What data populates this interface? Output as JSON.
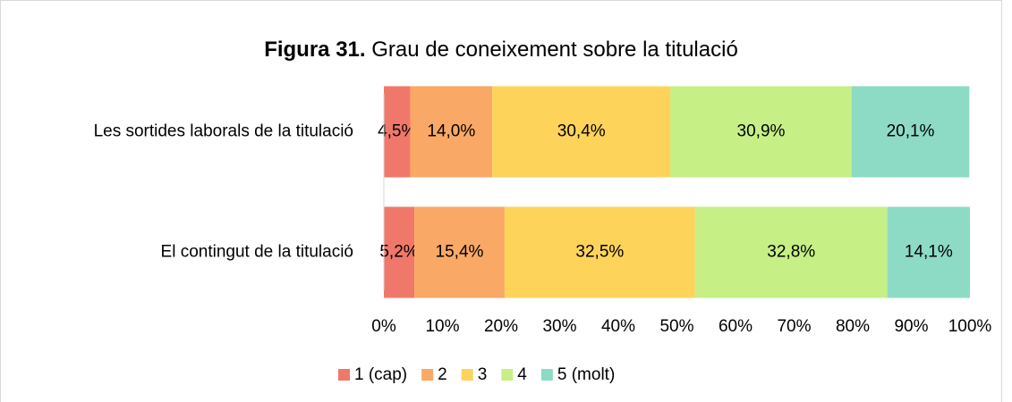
{
  "chart_data": {
    "type": "stacked-bar-horizontal",
    "title_label": "Figura 31.",
    "title": "Grau de coneixement sobre la titulació",
    "categories": [
      "Les sortides laborals de la titulació",
      "El contingut de la titulació"
    ],
    "series": [
      {
        "name": "1 (cap)",
        "color": "#f0786a",
        "values": [
          4.5,
          5.2
        ],
        "value_labels": [
          "4,5%",
          "5,2%"
        ]
      },
      {
        "name": "2",
        "color": "#f9a866",
        "values": [
          14.0,
          15.4
        ],
        "value_labels": [
          "14,0%",
          "15,4%"
        ]
      },
      {
        "name": "3",
        "color": "#fdd35a",
        "values": [
          30.4,
          32.5
        ],
        "value_labels": [
          "30,4%",
          "32,5%"
        ]
      },
      {
        "name": "4",
        "color": "#c6ef86",
        "values": [
          30.9,
          32.8
        ],
        "value_labels": [
          "30,9%",
          "32,8%"
        ]
      },
      {
        "name": "5 (molt)",
        "color": "#8ddbc5",
        "values": [
          20.1,
          14.1
        ],
        "value_labels": [
          "20,1%",
          "14,1%"
        ]
      }
    ],
    "xlim": [
      0,
      100
    ],
    "xticks": [
      {
        "value": 0,
        "label": "0%"
      },
      {
        "value": 10,
        "label": "10%"
      },
      {
        "value": 20,
        "label": "20%"
      },
      {
        "value": 30,
        "label": "30%"
      },
      {
        "value": 40,
        "label": "40%"
      },
      {
        "value": 50,
        "label": "50%"
      },
      {
        "value": 60,
        "label": "60%"
      },
      {
        "value": 70,
        "label": "70%"
      },
      {
        "value": 80,
        "label": "80%"
      },
      {
        "value": 90,
        "label": "90%"
      },
      {
        "value": 100,
        "label": "100%"
      }
    ],
    "legend": "bottom"
  }
}
